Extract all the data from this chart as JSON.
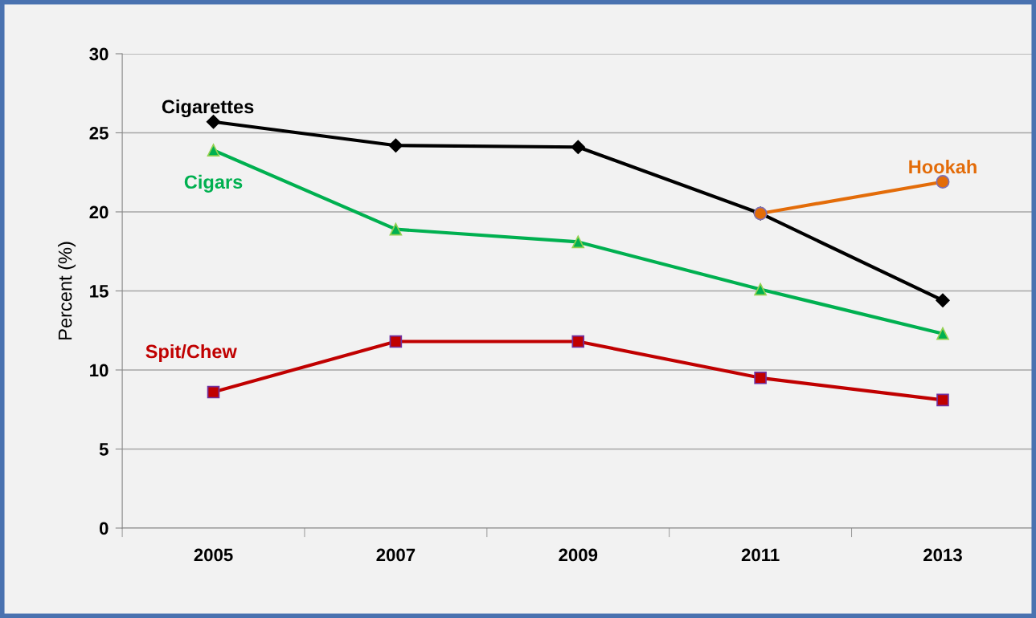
{
  "chart_data": {
    "type": "line",
    "ylabel": "Percent (%)",
    "categories": [
      "2005",
      "2007",
      "2009",
      "2011",
      "2013"
    ],
    "series": [
      {
        "name": "Cigarettes",
        "color": "#000000",
        "marker": "diamond",
        "values": [
          25.7,
          24.2,
          24.1,
          19.9,
          14.4
        ]
      },
      {
        "name": "Cigars",
        "color": "#00b050",
        "marker": "triangle",
        "values": [
          23.9,
          18.9,
          18.1,
          15.1,
          12.3
        ]
      },
      {
        "name": "Spit/Chew",
        "color": "#c00000",
        "marker": "square",
        "values": [
          8.6,
          11.8,
          11.8,
          9.5,
          8.1
        ]
      },
      {
        "name": "Hookah",
        "color": "#e36c09",
        "marker": "circle",
        "values": [
          null,
          null,
          null,
          19.9,
          21.9
        ]
      }
    ],
    "ylim": [
      0,
      30
    ],
    "yticks": [
      0,
      5,
      10,
      15,
      20,
      25,
      30
    ],
    "grid": "y",
    "legend": false
  }
}
